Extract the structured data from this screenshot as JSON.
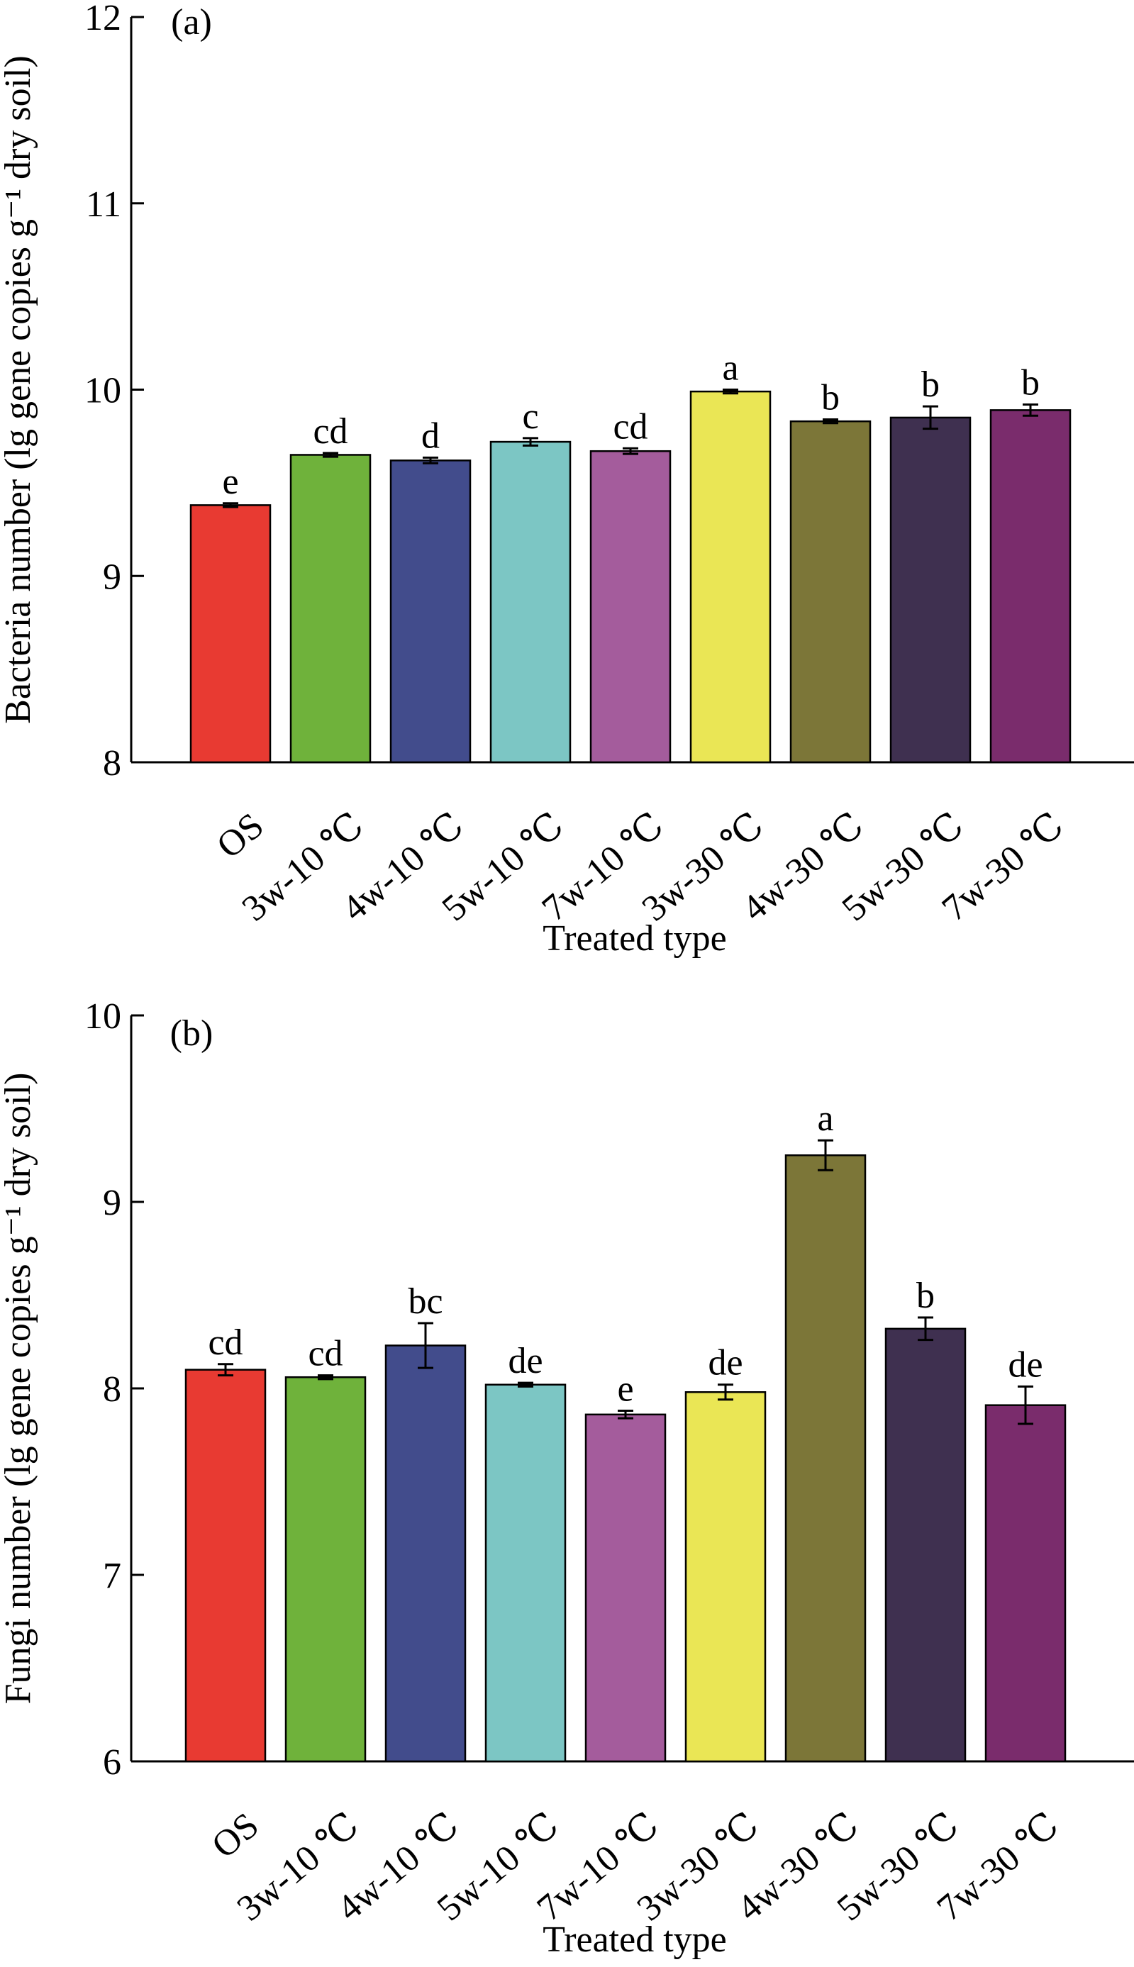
{
  "chart_data": [
    {
      "type": "bar",
      "panel_label": "(a)",
      "categories": [
        "OS",
        "3w-10 ℃",
        "4w-10 ℃",
        "5w-10 ℃",
        "7w-10 ℃",
        "3w-30 ℃",
        "4w-30 ℃",
        "5w-30 ℃",
        "7w-30 ℃"
      ],
      "values": [
        9.38,
        9.65,
        9.62,
        9.72,
        9.67,
        9.99,
        9.83,
        9.85,
        9.89
      ],
      "errors": [
        0.01,
        0.01,
        0.015,
        0.02,
        0.015,
        0.01,
        0.01,
        0.06,
        0.03
      ],
      "significance": [
        "e",
        "cd",
        "d",
        "c",
        "cd",
        "a",
        "b",
        "b",
        "b"
      ],
      "colors": [
        "#e83a32",
        "#6fb23b",
        "#424c8c",
        "#7cc6c4",
        "#a45c9c",
        "#eae655",
        "#7c7638",
        "#3f3050",
        "#7a2c6c"
      ],
      "xlabel": "Treated type",
      "ylabel": "Bacteria number (lg gene copies g⁻¹ dry soil)",
      "ylim": [
        8,
        12
      ],
      "yticks": [
        "8",
        "9",
        "10",
        "11",
        "12"
      ],
      "grid": false
    },
    {
      "type": "bar",
      "panel_label": "(b)",
      "categories": [
        "OS",
        "3w-10 ℃",
        "4w-10 ℃",
        "5w-10 ℃",
        "7w-10 ℃",
        "3w-30 ℃",
        "4w-30 ℃",
        "5w-30 ℃",
        "7w-30 ℃"
      ],
      "values": [
        8.1,
        8.06,
        8.23,
        8.02,
        7.86,
        7.98,
        9.25,
        8.32,
        7.91
      ],
      "errors": [
        0.03,
        0.01,
        0.12,
        0.01,
        0.02,
        0.04,
        0.08,
        0.06,
        0.1
      ],
      "significance": [
        "cd",
        "cd",
        "bc",
        "de",
        "e",
        "de",
        "a",
        "b",
        "de"
      ],
      "colors": [
        "#e83a32",
        "#6fb23b",
        "#424c8c",
        "#7cc6c4",
        "#a45c9c",
        "#eae655",
        "#7c7638",
        "#3f3050",
        "#7a2c6c"
      ],
      "xlabel": "Treated type",
      "ylabel": "Fungi number (lg gene copies g⁻¹ dry soil)",
      "ylim": [
        6,
        10
      ],
      "yticks": [
        "6",
        "7",
        "8",
        "9",
        "10"
      ],
      "grid": false
    }
  ]
}
